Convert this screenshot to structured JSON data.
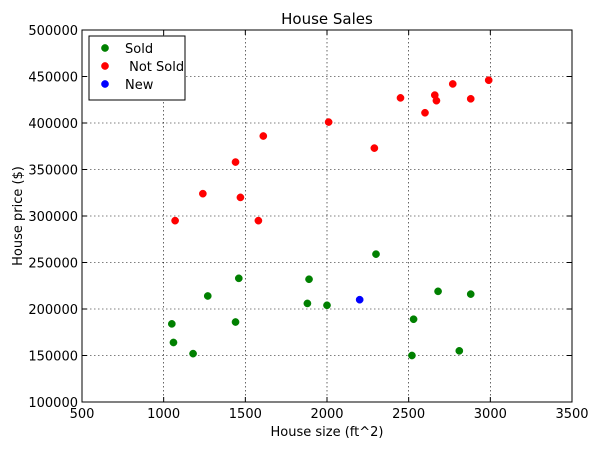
{
  "chart_data": {
    "type": "scatter",
    "title": "House Sales",
    "xlabel": "House size (ft^2)",
    "ylabel": "House price ($)",
    "xlim": [
      500,
      3500
    ],
    "ylim": [
      100000,
      500000
    ],
    "x_ticks": [
      500,
      1000,
      1500,
      2000,
      2500,
      3000,
      3500
    ],
    "y_ticks": [
      100000,
      150000,
      200000,
      250000,
      300000,
      350000,
      400000,
      450000,
      500000
    ],
    "grid": true,
    "legend": {
      "placement": "top-left"
    },
    "series": [
      {
        "name": "Sold",
        "color": "#008000",
        "points": [
          [
            1050,
            184000
          ],
          [
            1060,
            164000
          ],
          [
            1180,
            152000
          ],
          [
            1270,
            214000
          ],
          [
            1440,
            186000
          ],
          [
            1460,
            233000
          ],
          [
            1880,
            206000
          ],
          [
            1890,
            232000
          ],
          [
            2000,
            204000
          ],
          [
            2300,
            259000
          ],
          [
            2530,
            189000
          ],
          [
            2520,
            150000
          ],
          [
            2680,
            219000
          ],
          [
            2880,
            216000
          ],
          [
            2810,
            155000
          ]
        ]
      },
      {
        "name": " Not Sold",
        "color": "#ff0000",
        "points": [
          [
            1070,
            295000
          ],
          [
            1240,
            324000
          ],
          [
            1440,
            358000
          ],
          [
            1470,
            320000
          ],
          [
            1580,
            295000
          ],
          [
            1610,
            386000
          ],
          [
            2010,
            401000
          ],
          [
            2290,
            373000
          ],
          [
            2450,
            427000
          ],
          [
            2600,
            411000
          ],
          [
            2660,
            430000
          ],
          [
            2670,
            424000
          ],
          [
            2770,
            442000
          ],
          [
            2880,
            426000
          ],
          [
            2990,
            446000
          ]
        ]
      },
      {
        "name": "New",
        "color": "#0000ff",
        "points": [
          [
            2200,
            210000
          ]
        ]
      }
    ]
  }
}
